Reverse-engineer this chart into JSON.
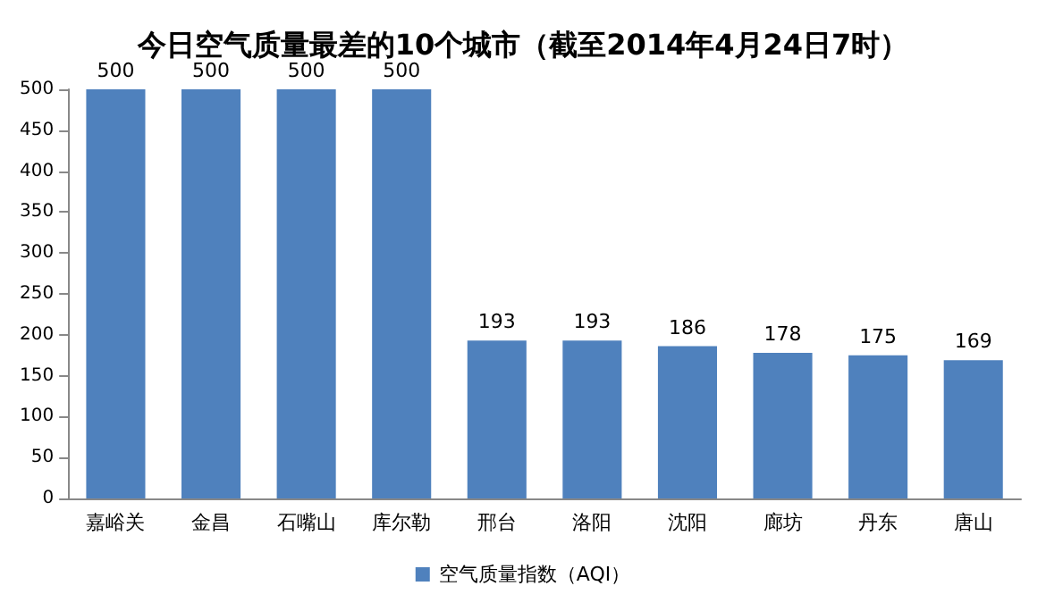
{
  "chart_data": {
    "type": "bar",
    "title": "今日空气质量最差的10个城市（截至2014年4月24日7时）",
    "categories": [
      "嘉峪关",
      "金昌",
      "石嘴山",
      "库尔勒",
      "邢台",
      "洛阳",
      "沈阳",
      "廊坊",
      "丹东",
      "唐山"
    ],
    "series": [
      {
        "name": "空气质量指数（AQI）",
        "color": "#4f81bd",
        "values": [
          500,
          500,
          500,
          500,
          193,
          193,
          186,
          178,
          175,
          169
        ]
      }
    ],
    "ylim": [
      0,
      500
    ],
    "yticks": [
      0,
      50,
      100,
      150,
      200,
      250,
      300,
      350,
      400,
      450,
      500
    ],
    "grid": false,
    "legend": "bottom",
    "data_labels": true
  }
}
